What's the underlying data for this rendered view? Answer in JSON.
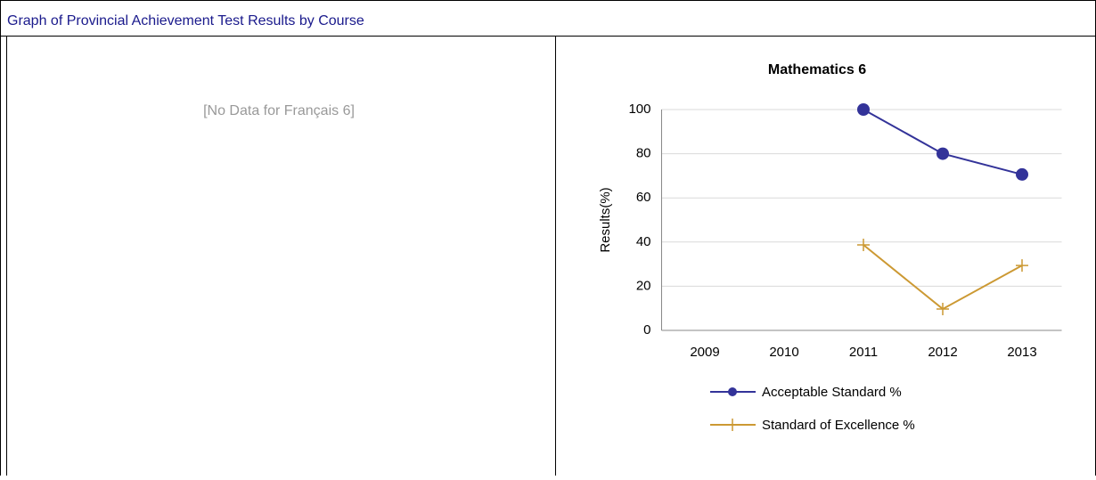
{
  "header": {
    "title": "Graph of Provincial Achievement Test Results by Course"
  },
  "left_panel": {
    "message": "[No Data for Français 6]"
  },
  "chart_data": {
    "type": "line",
    "title": "Mathematics 6",
    "y_label": "Results(%)",
    "categories": [
      "2009",
      "2010",
      "2011",
      "2012",
      "2013"
    ],
    "series": [
      {
        "name": "Acceptable Standard %",
        "color": "#333399",
        "marker": "circle",
        "values": [
          null,
          null,
          100,
          80,
          70.6
        ]
      },
      {
        "name": "Standard of Excellence %",
        "color": "#cc9933",
        "marker": "plus",
        "values": [
          null,
          null,
          38.7,
          9.7,
          29.4
        ]
      }
    ],
    "ylim": [
      0,
      100
    ],
    "yticks": [
      0,
      20,
      40,
      60,
      80,
      100
    ],
    "grid": true,
    "legend": "bottom"
  }
}
